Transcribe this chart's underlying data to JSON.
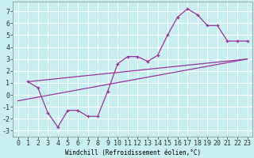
{
  "xlabel": "Windchill (Refroidissement éolien,°C)",
  "background_color": "#c8eef0",
  "grid_color": "#ffffff",
  "line_color": "#993399",
  "xlim": [
    -0.5,
    23.5
  ],
  "ylim": [
    -3.5,
    7.8
  ],
  "yticks": [
    -3,
    -2,
    -1,
    0,
    1,
    2,
    3,
    4,
    5,
    6,
    7
  ],
  "xticks": [
    0,
    1,
    2,
    3,
    4,
    5,
    6,
    7,
    8,
    9,
    10,
    11,
    12,
    13,
    14,
    15,
    16,
    17,
    18,
    19,
    20,
    21,
    22,
    23
  ],
  "line1_x": [
    1,
    2,
    3,
    4,
    5,
    6,
    7,
    8,
    9,
    10,
    11,
    12,
    13,
    14,
    15,
    16,
    17,
    18,
    19,
    20,
    21,
    22,
    23
  ],
  "line1_y": [
    1.1,
    0.6,
    -1.5,
    -2.7,
    -1.3,
    -1.3,
    -1.8,
    -1.8,
    0.3,
    2.6,
    3.2,
    3.2,
    2.8,
    3.3,
    5.0,
    6.5,
    7.2,
    6.7,
    5.8,
    5.8,
    4.5,
    4.5,
    4.5
  ],
  "line2_x": [
    1,
    23
  ],
  "line2_y": [
    1.1,
    3.0
  ],
  "line3_x": [
    0,
    23
  ],
  "line3_y": [
    -0.5,
    3.0
  ],
  "xlabel_fontsize": 5.5,
  "tick_fontsize": 6.0
}
